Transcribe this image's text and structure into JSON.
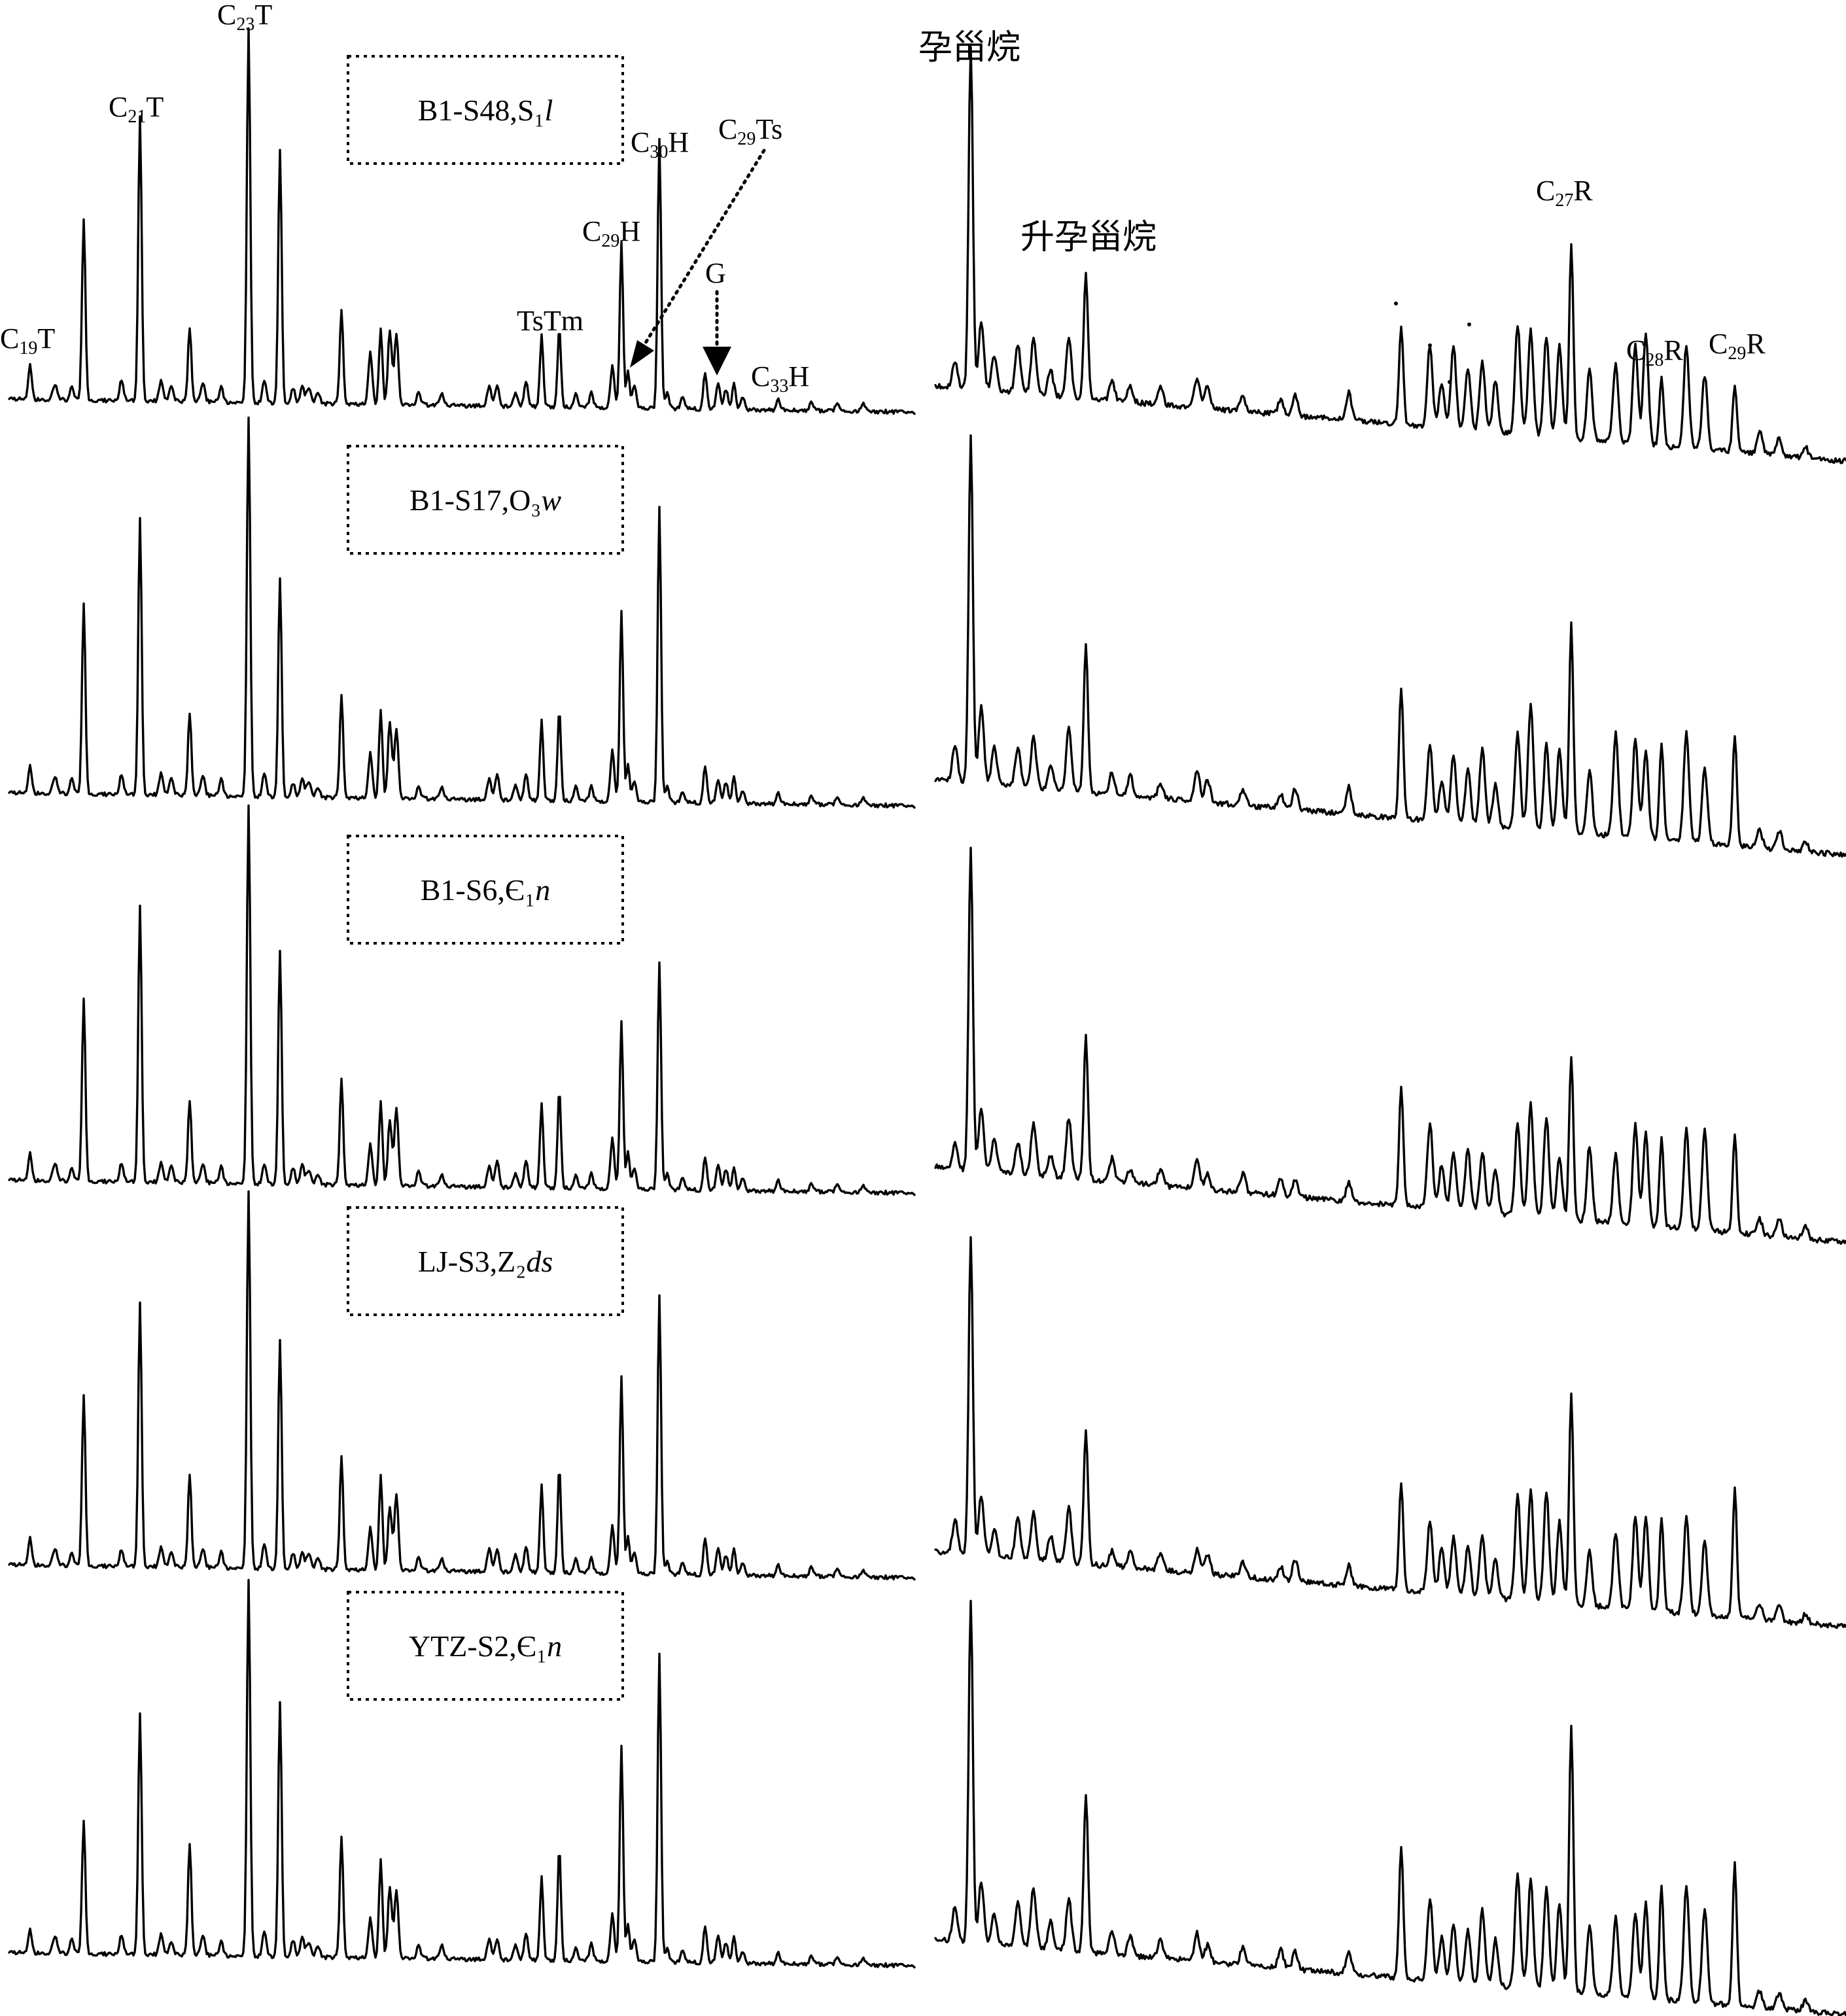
{
  "chart_data": {
    "type": "line",
    "description_text": "",
    "samples": [
      {
        "label": "B1-S48,S₁",
        "italic": "l"
      },
      {
        "label": "B1-S17,O₃",
        "italic": "w"
      },
      {
        "label": "B1-S6,Є₁",
        "italic": "n"
      },
      {
        "label": "LJ-S3,Z₂",
        "italic": "ds"
      },
      {
        "label": "YTZ-S2,Є₁",
        "italic": "n"
      }
    ],
    "left_peak_labels": [
      {
        "id": "C19T",
        "base": "C",
        "sub": "19",
        "tail": "T"
      },
      {
        "id": "C21T",
        "base": "C",
        "sub": "21",
        "tail": "T"
      },
      {
        "id": "C23T",
        "base": "C",
        "sub": "23",
        "tail": "T"
      },
      {
        "id": "TsTm",
        "base": "TsTm",
        "sub": "",
        "tail": ""
      },
      {
        "id": "C29H",
        "base": "C",
        "sub": "29",
        "tail": "H"
      },
      {
        "id": "C30H",
        "base": "C",
        "sub": "30",
        "tail": "H"
      },
      {
        "id": "C29Ts",
        "base": "C",
        "sub": "29",
        "tail": "Ts"
      },
      {
        "id": "G",
        "base": "G",
        "sub": "",
        "tail": ""
      },
      {
        "id": "C33H",
        "base": "C",
        "sub": "33",
        "tail": "H"
      }
    ],
    "right_peak_labels": [
      {
        "id": "pregnane",
        "base": "孕甾烷",
        "sub": "",
        "tail": ""
      },
      {
        "id": "homopregnane",
        "base": "升孕甾烷",
        "sub": "",
        "tail": ""
      },
      {
        "id": "C27R",
        "base": "C",
        "sub": "27",
        "tail": "R"
      },
      {
        "id": "C28R",
        "base": "C",
        "sub": "28",
        "tail": "R"
      },
      {
        "id": "C29R",
        "base": "C",
        "sub": "29",
        "tail": "R"
      }
    ],
    "left_peaks": [
      {
        "id": "C19T",
        "rel": [
          0.09,
          0.07,
          0.07,
          0.07,
          0.06
        ],
        "labeled": true
      },
      {
        "id": "C20T",
        "rel": [
          0.48,
          0.5,
          0.48,
          0.45,
          0.35
        ],
        "labeled": false
      },
      {
        "id": "C21T",
        "rel": [
          0.76,
          0.73,
          0.73,
          0.7,
          0.64
        ],
        "labeled": true
      },
      {
        "id": "C22T",
        "rel": [
          0.2,
          0.22,
          0.22,
          0.25,
          0.3
        ],
        "labeled": false
      },
      {
        "id": "C23T",
        "rel": [
          1.0,
          1.0,
          1.0,
          1.0,
          1.0
        ],
        "labeled": true
      },
      {
        "id": "C24T",
        "rel": [
          0.68,
          0.58,
          0.62,
          0.61,
          0.68
        ],
        "labeled": false
      },
      {
        "id": "C25T",
        "rel": [
          0.25,
          0.27,
          0.28,
          0.3,
          0.32
        ],
        "labeled": false
      },
      {
        "id": "C26T",
        "rel": [
          0.2,
          0.23,
          0.22,
          0.25,
          0.26
        ],
        "labeled": false
      },
      {
        "id": "Ts",
        "rel": [
          0.19,
          0.21,
          0.22,
          0.23,
          0.22
        ],
        "labeled": true
      },
      {
        "id": "Tm",
        "rel": [
          0.21,
          0.24,
          0.26,
          0.28,
          0.3
        ],
        "labeled": true
      },
      {
        "id": "C29H",
        "rel": [
          0.44,
          0.5,
          0.44,
          0.52,
          0.57
        ],
        "labeled": true
      },
      {
        "id": "C29Ts",
        "rel": [
          0.1,
          0.1,
          0.1,
          0.1,
          0.1
        ],
        "labeled": true
      },
      {
        "id": "C30H",
        "rel": [
          0.72,
          0.78,
          0.6,
          0.74,
          0.82
        ],
        "labeled": true
      },
      {
        "id": "G",
        "rel": [
          0.1,
          0.1,
          0.09,
          0.1,
          0.1
        ],
        "labeled": true
      },
      {
        "id": "C31H",
        "rel": [
          0.07,
          0.07,
          0.06,
          0.07,
          0.07
        ],
        "labeled": false
      },
      {
        "id": "C33H",
        "rel": [
          0.03,
          0.03,
          0.03,
          0.03,
          0.03
        ],
        "labeled": true
      }
    ],
    "right_peaks": [
      {
        "id": "pregnane",
        "rel": [
          1.0,
          1.0,
          1.0,
          1.0,
          1.0
        ],
        "labeled": true
      },
      {
        "id": "homopregnane",
        "rel": [
          0.36,
          0.42,
          0.44,
          0.42,
          0.46
        ],
        "labeled": true
      },
      {
        "id": "C27S",
        "rel": [
          0.29,
          0.38,
          0.37,
          0.34,
          0.38
        ],
        "labeled": false
      },
      {
        "id": "C27R",
        "rel": [
          0.56,
          0.6,
          0.51,
          0.67,
          0.78
        ],
        "labeled": true
      },
      {
        "id": "C28R",
        "rel": [
          0.2,
          0.28,
          0.27,
          0.3,
          0.33
        ],
        "labeled": true
      },
      {
        "id": "C29R",
        "rel": [
          0.2,
          0.32,
          0.3,
          0.41,
          0.41
        ],
        "labeled": true
      }
    ],
    "legend": "none",
    "grid": false,
    "axes_shown": false
  }
}
